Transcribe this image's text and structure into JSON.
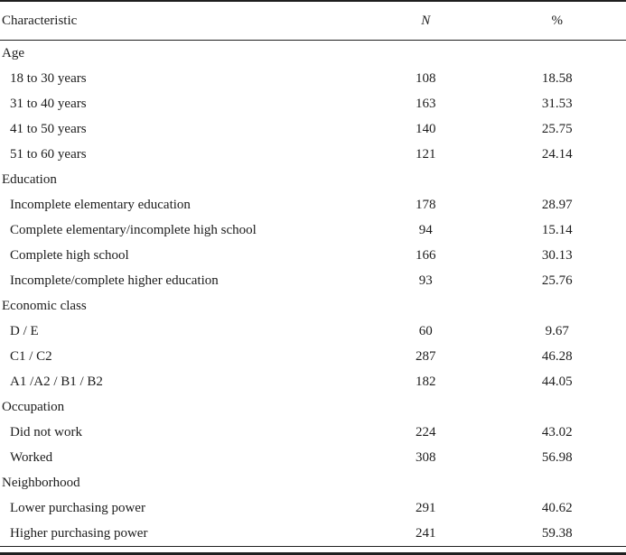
{
  "table": {
    "columns": {
      "characteristic": "Characteristic",
      "n": "N",
      "percent": "%"
    },
    "rows": [
      {
        "type": "section",
        "label": "Age",
        "n": "",
        "pct": ""
      },
      {
        "type": "item",
        "label": "18 to 30 years",
        "n": "108",
        "pct": "18.58"
      },
      {
        "type": "item",
        "label": "31 to 40 years",
        "n": "163",
        "pct": "31.53"
      },
      {
        "type": "item",
        "label": "41 to 50 years",
        "n": "140",
        "pct": "25.75"
      },
      {
        "type": "item",
        "label": "51 to 60 years",
        "n": "121",
        "pct": "24.14"
      },
      {
        "type": "section",
        "label": "Education",
        "n": "",
        "pct": ""
      },
      {
        "type": "item",
        "label": "Incomplete elementary education",
        "n": "178",
        "pct": "28.97"
      },
      {
        "type": "item",
        "label": "Complete elementary/incomplete high school",
        "n": "94",
        "pct": "15.14"
      },
      {
        "type": "item",
        "label": "Complete high school",
        "n": "166",
        "pct": "30.13"
      },
      {
        "type": "item",
        "label": "Incomplete/complete higher education",
        "n": "93",
        "pct": "25.76"
      },
      {
        "type": "section",
        "label": "Economic class",
        "n": "",
        "pct": ""
      },
      {
        "type": "item",
        "label": "D / E",
        "n": "60",
        "pct": "9.67"
      },
      {
        "type": "item",
        "label": "C1 / C2",
        "n": "287",
        "pct": "46.28"
      },
      {
        "type": "item",
        "label": "A1 /A2 / B1 / B2",
        "n": "182",
        "pct": "44.05"
      },
      {
        "type": "section",
        "label": "Occupation",
        "n": "",
        "pct": ""
      },
      {
        "type": "item",
        "label": "Did not work",
        "n": "224",
        "pct": "43.02"
      },
      {
        "type": "item",
        "label": "Worked",
        "n": "308",
        "pct": "56.98"
      },
      {
        "type": "section",
        "label": "Neighborhood",
        "n": "",
        "pct": ""
      },
      {
        "type": "item",
        "label": "Lower purchasing power",
        "n": "291",
        "pct": "40.62"
      },
      {
        "type": "item",
        "label": "Higher purchasing power",
        "n": "241",
        "pct": "59.38"
      }
    ],
    "colors": {
      "text": "#1c1c1c",
      "rule": "#1f1f1f",
      "background": "#ffffff"
    }
  }
}
